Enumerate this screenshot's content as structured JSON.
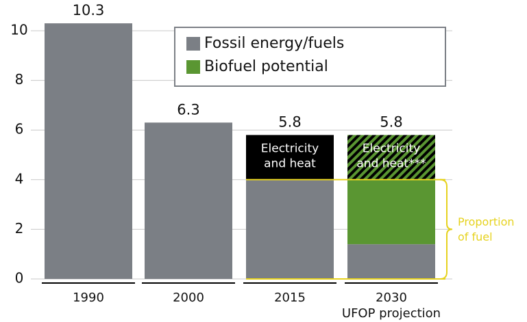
{
  "chart_data": {
    "type": "bar",
    "stacked": true,
    "categories": [
      "1990",
      "2000",
      "2015",
      "2030"
    ],
    "category_sublabels": [
      null,
      null,
      null,
      "UFOP projection"
    ],
    "series": [
      {
        "name": "Fossil energy/fuels",
        "color": "#7b7f85",
        "values": [
          10.3,
          6.3,
          4,
          1.4
        ]
      },
      {
        "name": "Biofuel potential",
        "color": "#5a9632",
        "values": [
          null,
          null,
          null,
          2.6
        ]
      },
      {
        "color": "#000000",
        "hatch_color": "#5a9632",
        "hatched": [
          false,
          false,
          false,
          true
        ],
        "values": [
          null,
          null,
          1.8,
          1.8
        ],
        "labels": [
          null,
          null,
          [
            "Electricity",
            "and heat"
          ],
          [
            "Electricity",
            "and heat***"
          ]
        ]
      }
    ],
    "totals": [
      10.3,
      6.3,
      5.8,
      5.8
    ],
    "bracket": {
      "label": [
        "Proportion",
        "of fuel"
      ],
      "from": 0,
      "to": 4,
      "color": "#e6d21e"
    },
    "ylim": [
      0,
      10
    ],
    "yticks": [
      0,
      2,
      4,
      6,
      8,
      10
    ],
    "grid": true,
    "legend": "top-right"
  }
}
